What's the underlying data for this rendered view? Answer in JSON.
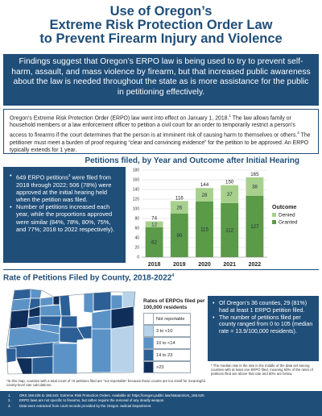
{
  "header": {
    "title_lines": [
      "Use of Oregon’s",
      "Extreme Risk Protection Order Law",
      "to Prevent Firearm Injury and Violence"
    ]
  },
  "banner": {
    "text": "Findings suggest that Oregon’s ERPO law is being used to try to prevent self-harm, assault, and mass violence by firearm, but that increased public awareness about the law is needed throughout the state as is more assistance for the public in petitioning effectively."
  },
  "intro": {
    "part1": "Oregon’s Extreme Risk Protection Order (ERPO) law went into effect on January 1, 2018.",
    "sup1": "1",
    "part2": " The law allows family or household members or a law enforcement officer to petition a civil court for an order to temporarily restrict a person’s access to firearms if the court determines that the person is at imminent risk of causing harm to themselves or others.",
    "sup2": "2",
    "part3": "  The petitioner must meet a burden of proof requiring “clear and convincing evidence” for the petition to be approved. An ERPO typically extends for 1 year."
  },
  "petitions_section": {
    "title": "Petitions filed, by Year and Outcome after Initial Hearing",
    "bullet1_a": "649 ERPO petitions",
    "bullet1_sup": "3",
    "bullet1_b": " were filed from 2018 through 2022; 506 (78%) were approved at the initial hearing held when the petition was filed.",
    "bullet2": "Number of petitions increased each year, while the proportions approved were similar (84%, 78%, 80%, 75%, and 77%; 2018 to 2022 respectively)."
  },
  "chart_data": {
    "type": "bar",
    "stacked": true,
    "categories": [
      "2018",
      "2019",
      "2020",
      "2021",
      "2022"
    ],
    "series": [
      {
        "name": "Granted",
        "values": [
          62,
          90,
          115,
          112,
          127
        ],
        "color": "#5a9a48"
      },
      {
        "name": "Denied",
        "values": [
          12,
          26,
          28,
          37,
          38
        ],
        "color": "#a8d08d"
      }
    ],
    "totals": [
      74,
      116,
      144,
      150,
      165
    ],
    "ylim": [
      0,
      180
    ],
    "yticks": [
      0,
      20,
      40,
      60,
      80,
      100,
      120,
      140,
      160,
      180
    ],
    "legend_title": "Outcome",
    "legend_position": "right",
    "grid": true
  },
  "map_section": {
    "title": "Rate of Petitions Filed by County, 2018-2022",
    "title_sup": "4",
    "legend_title": "Rates of ERPOs filed per 100,000 residents",
    "legend_items": [
      {
        "label": "Not reportable",
        "color": "#ffffff"
      },
      {
        "label": "3 to <10",
        "color": "#b8d3e9"
      },
      {
        "label": "10 to <14",
        "color": "#5b93c7"
      },
      {
        "label": "14 to 23",
        "color": "#2c5f96"
      },
      {
        "label": ">23",
        "color": "#102e5a"
      }
    ],
    "bullet1": "Of Oregon’s 36 counties, 29 (81%) had at least 1 ERPO petition filed.",
    "bullet2": "The number of petitions filed per county ranged from 0 to 105 (median rate = 13.9/100,000 residents).",
    "median_note": "* The median rate is the rate in the middle of the data set among counties with at least one ERPO filed, meaning 50% of the rates of petitions filed are above that rate and 50% are below.",
    "map_note": "*In this map, counties with a total count of <5 petitions filed are “not reportable” because those counts are too small for meaningful county-level rate calculations."
  },
  "footer": {
    "notes": [
      {
        "num": "1.",
        "text": "ORS 166.525 to 166.543. Extreme Risk Protection Orders. Available at: https://oregon.public.law/statutes/ors_166.525"
      },
      {
        "num": "2.",
        "text": "ERPO laws are not specific to firearms, but rather require the removal of any deadly weapon."
      },
      {
        "num": "3.",
        "text": "Data were extracted from court records provided by the Oregon Judicial Department."
      }
    ]
  }
}
